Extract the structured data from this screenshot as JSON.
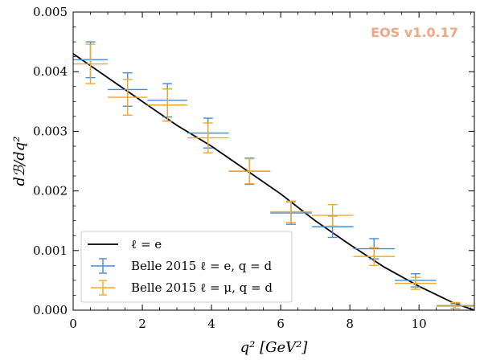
{
  "chart_data": {
    "type": "line",
    "watermark": "EOS v1.0.17",
    "xlabel": "q² [GeV²]",
    "ylabel": "dℬ/dq²",
    "xlim": [
      0,
      11.6
    ],
    "ylim": [
      0,
      0.005
    ],
    "xticks": [
      0,
      2,
      4,
      6,
      8,
      10
    ],
    "xtick_labels": [
      "0",
      "2",
      "4",
      "6",
      "8",
      "10"
    ],
    "yticks": [
      0,
      0.001,
      0.002,
      0.003,
      0.004,
      0.005
    ],
    "ytick_labels": [
      "0.000",
      "0.001",
      "0.002",
      "0.003",
      "0.004",
      "0.005"
    ],
    "legend_position": "lower-left",
    "colors": {
      "line": "#000000",
      "electron": "#3f8fdc",
      "muon": "#f5a623",
      "watermark": "#f4a582"
    },
    "line": {
      "name": "ℓ = e",
      "x": [
        0,
        1,
        2,
        3,
        4,
        5,
        6,
        7,
        8,
        9,
        10,
        11,
        11.6
      ],
      "y": [
        0.0043,
        0.0039,
        0.0035,
        0.0031,
        0.00275,
        0.00235,
        0.00195,
        0.0015,
        0.0011,
        0.00072,
        0.0004,
        0.00012,
        0.0
      ]
    },
    "series": [
      {
        "name": "Belle 2015 ℓ = e, q = d",
        "color": "#3f8fdc",
        "points": [
          {
            "xmin": 0.0,
            "xmax": 1.0,
            "y": 0.0042,
            "yerr": 0.0003
          },
          {
            "xmin": 1.0,
            "xmax": 2.15,
            "y": 0.0037,
            "yerr": 0.00028
          },
          {
            "xmin": 2.15,
            "xmax": 3.3,
            "y": 0.00352,
            "yerr": 0.00028
          },
          {
            "xmin": 3.3,
            "xmax": 4.5,
            "y": 0.00297,
            "yerr": 0.00025
          },
          {
            "xmin": 4.5,
            "xmax": 5.7,
            "y": 0.00233,
            "yerr": 0.00022
          },
          {
            "xmin": 5.7,
            "xmax": 6.9,
            "y": 0.00163,
            "yerr": 0.00019
          },
          {
            "xmin": 6.9,
            "xmax": 8.1,
            "y": 0.0014,
            "yerr": 0.00018
          },
          {
            "xmin": 8.1,
            "xmax": 9.3,
            "y": 0.00103,
            "yerr": 0.00017
          },
          {
            "xmin": 9.3,
            "xmax": 10.5,
            "y": 0.0005,
            "yerr": 0.00011
          },
          {
            "xmin": 10.5,
            "xmax": 11.6,
            "y": 7e-05,
            "yerr": 4e-05
          }
        ]
      },
      {
        "name": "Belle 2015 ℓ = μ, q = d",
        "color": "#f5a623",
        "points": [
          {
            "xmin": 0.0,
            "xmax": 1.0,
            "y": 0.00413,
            "yerr": 0.00033
          },
          {
            "xmin": 1.0,
            "xmax": 2.15,
            "y": 0.00357,
            "yerr": 0.0003
          },
          {
            "xmin": 2.15,
            "xmax": 3.3,
            "y": 0.00344,
            "yerr": 0.00027
          },
          {
            "xmin": 3.3,
            "xmax": 4.5,
            "y": 0.00289,
            "yerr": 0.00025
          },
          {
            "xmin": 4.5,
            "xmax": 5.7,
            "y": 0.00233,
            "yerr": 0.00021
          },
          {
            "xmin": 5.7,
            "xmax": 6.9,
            "y": 0.00165,
            "yerr": 0.00018
          },
          {
            "xmin": 6.9,
            "xmax": 8.1,
            "y": 0.00159,
            "yerr": 0.00018
          },
          {
            "xmin": 8.1,
            "xmax": 9.3,
            "y": 0.0009,
            "yerr": 0.00015
          },
          {
            "xmin": 9.3,
            "xmax": 10.5,
            "y": 0.00045,
            "yerr": 0.0001
          },
          {
            "xmin": 10.5,
            "xmax": 11.6,
            "y": 8e-05,
            "yerr": 5e-05
          }
        ]
      }
    ]
  }
}
